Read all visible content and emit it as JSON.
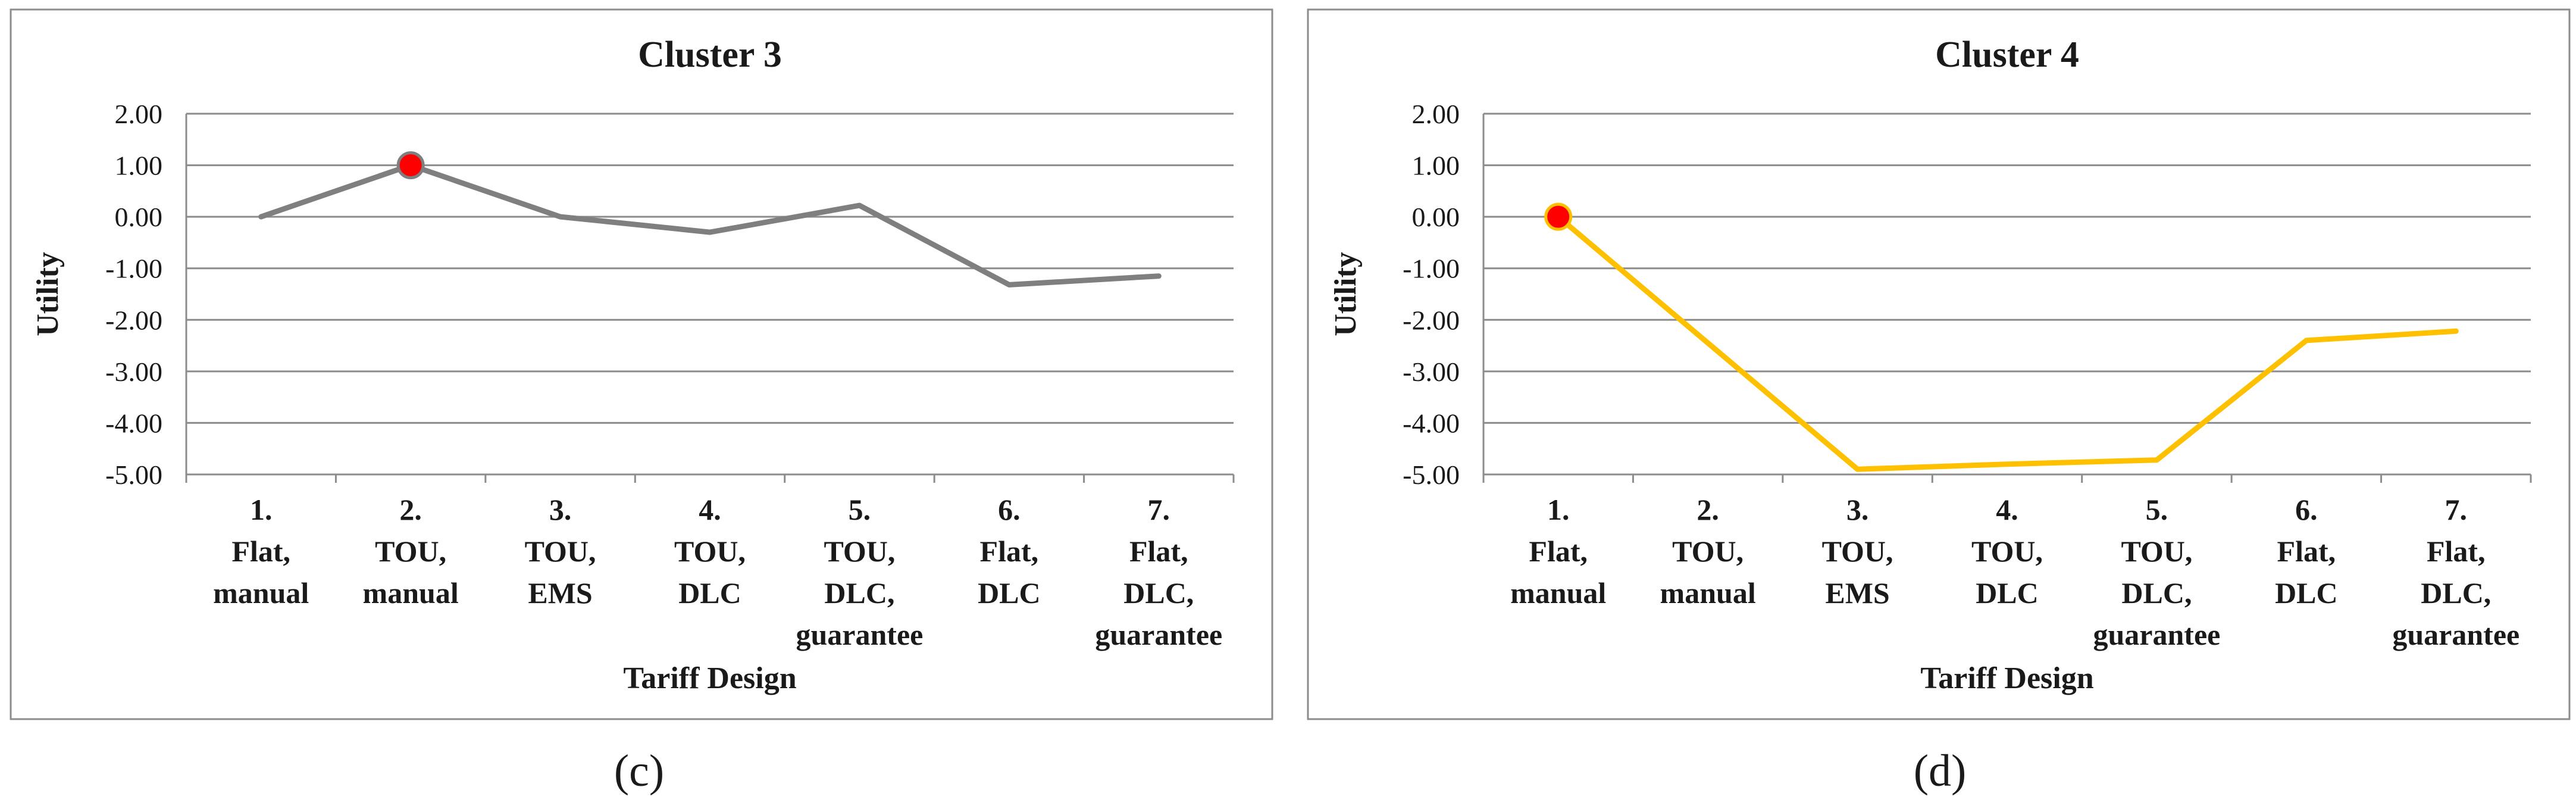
{
  "chart_data": [
    {
      "type": "line",
      "title": "Cluster 3",
      "panel_label": "(c)",
      "xlabel": "Tariff Design",
      "ylabel": "Utility",
      "ylim": [
        -5.0,
        2.0
      ],
      "yticks": [
        "2.00",
        "1.00",
        "0.00",
        "-1.00",
        "-2.00",
        "-3.00",
        "-4.00",
        "-5.00"
      ],
      "grid": true,
      "categories": [
        [
          "1.",
          "Flat,",
          "manual"
        ],
        [
          "2.",
          "TOU,",
          "manual"
        ],
        [
          "3.",
          "TOU,",
          "EMS"
        ],
        [
          "4.",
          "TOU,",
          "DLC"
        ],
        [
          "5.",
          "TOU,",
          "DLC,",
          "guarantee"
        ],
        [
          "6.",
          "Flat,",
          "DLC"
        ],
        [
          "7.",
          "Flat,",
          "DLC,",
          "guarantee"
        ]
      ],
      "series": [
        {
          "name": "Cluster 3",
          "color": "#7f7f7f",
          "values": [
            0.0,
            1.0,
            0.0,
            -0.3,
            0.22,
            -1.32,
            -1.15
          ]
        }
      ],
      "highlight_index": 1,
      "highlight_color": "#ff0000"
    },
    {
      "type": "line",
      "title": "Cluster 4",
      "panel_label": "(d)",
      "xlabel": "Tariff Design",
      "ylabel": "Utility",
      "ylim": [
        -5.0,
        2.0
      ],
      "yticks": [
        "2.00",
        "1.00",
        "0.00",
        "-1.00",
        "-2.00",
        "-3.00",
        "-4.00",
        "-5.00"
      ],
      "grid": true,
      "categories": [
        [
          "1.",
          "Flat,",
          "manual"
        ],
        [
          "2.",
          "TOU,",
          "manual"
        ],
        [
          "3.",
          "TOU,",
          "EMS"
        ],
        [
          "4.",
          "TOU,",
          "DLC"
        ],
        [
          "5.",
          "TOU,",
          "DLC,",
          "guarantee"
        ],
        [
          "6.",
          "Flat,",
          "DLC"
        ],
        [
          "7.",
          "Flat,",
          "DLC,",
          "guarantee"
        ]
      ],
      "series": [
        {
          "name": "Cluster 4",
          "color": "#ffc000",
          "values": [
            0.0,
            null,
            -4.9,
            -4.8,
            -4.72,
            -2.4,
            -2.22
          ]
        }
      ],
      "highlight_index": 0,
      "highlight_color": "#ff0000"
    }
  ]
}
